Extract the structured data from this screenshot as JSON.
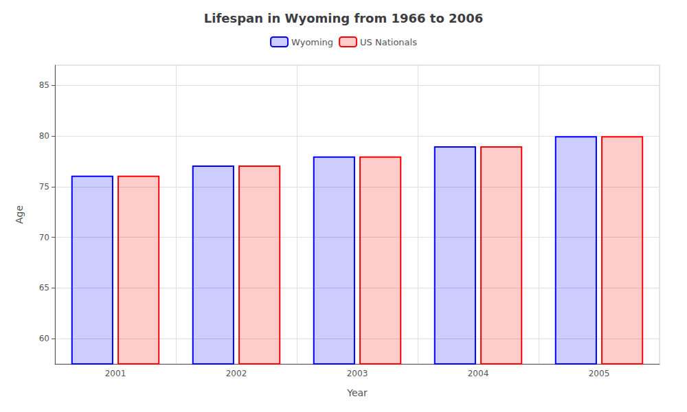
{
  "chart_data": {
    "type": "bar",
    "title": "Lifespan in Wyoming from 1966 to 2006",
    "x_label": "Year",
    "y_label": "Age",
    "categories": [
      "2001",
      "2002",
      "2003",
      "2004",
      "2005"
    ],
    "series": [
      {
        "name": "Wyoming",
        "color": "#0000ff",
        "values": [
          76.1,
          77.1,
          78.0,
          79.0,
          80.0
        ]
      },
      {
        "name": "US Nationals",
        "color": "#ff0000",
        "values": [
          76.1,
          77.1,
          78.0,
          79.0,
          80.0
        ]
      }
    ],
    "ylim": [
      57.5,
      87
    ],
    "yticks": [
      60,
      65,
      70,
      75,
      80,
      85
    ],
    "grid": true,
    "legend": "top"
  }
}
